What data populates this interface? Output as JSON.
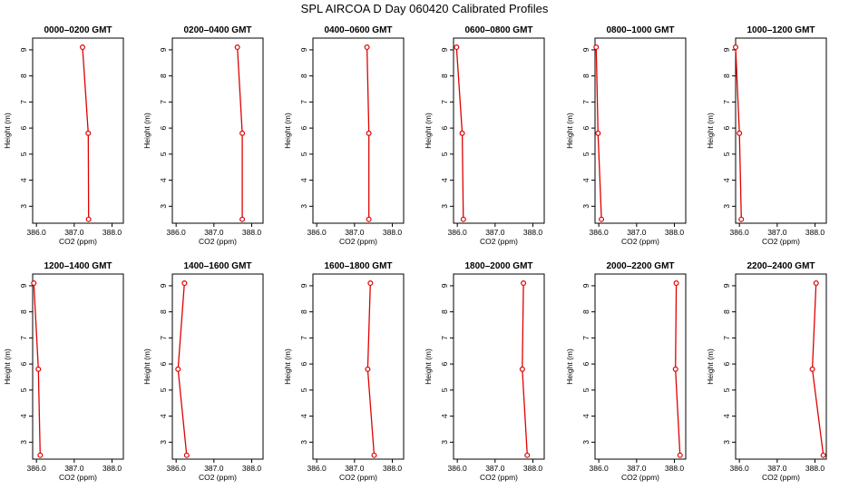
{
  "chart_data": {
    "type": "line",
    "title": "SPL AIRCOA D  Day 060420  Calibrated Profiles",
    "xlabel": "CO2 (ppm)",
    "ylabel": "Height (m)",
    "xlim": [
      385.9,
      388.3
    ],
    "ylim": [
      2.35,
      9.45
    ],
    "xticks": [
      "386.0",
      "387.0",
      "388.0"
    ],
    "yticks": [
      "3",
      "4",
      "5",
      "6",
      "7",
      "8",
      "9"
    ],
    "line_color": "#e00000",
    "grid": false,
    "heights": [
      9.1,
      5.8,
      2.5
    ],
    "panels": [
      {
        "title": "0000–0200 GMT",
        "values": [
          387.22,
          387.37,
          387.38
        ]
      },
      {
        "title": "0200–0400 GMT",
        "values": [
          387.62,
          387.75,
          387.75
        ]
      },
      {
        "title": "0400–0600 GMT",
        "values": [
          387.33,
          387.38,
          387.38
        ]
      },
      {
        "title": "0600–0800 GMT",
        "values": [
          385.98,
          386.13,
          386.16
        ]
      },
      {
        "title": "0800–1000 GMT",
        "values": [
          385.93,
          385.98,
          386.07
        ]
      },
      {
        "title": "1000–1200 GMT",
        "values": [
          385.9,
          386.0,
          386.05
        ]
      },
      {
        "title": "1200–1400 GMT",
        "values": [
          385.93,
          386.05,
          386.1
        ]
      },
      {
        "title": "1400–1600 GMT",
        "values": [
          386.22,
          386.05,
          386.28
        ]
      },
      {
        "title": "1600–1800 GMT",
        "values": [
          387.42,
          387.35,
          387.52
        ]
      },
      {
        "title": "1800–2000 GMT",
        "values": [
          387.75,
          387.72,
          387.85
        ]
      },
      {
        "title": "2000–2200 GMT",
        "values": [
          388.05,
          388.03,
          388.15
        ]
      },
      {
        "title": "2200–2400 GMT",
        "values": [
          388.03,
          387.93,
          388.22
        ]
      }
    ]
  }
}
